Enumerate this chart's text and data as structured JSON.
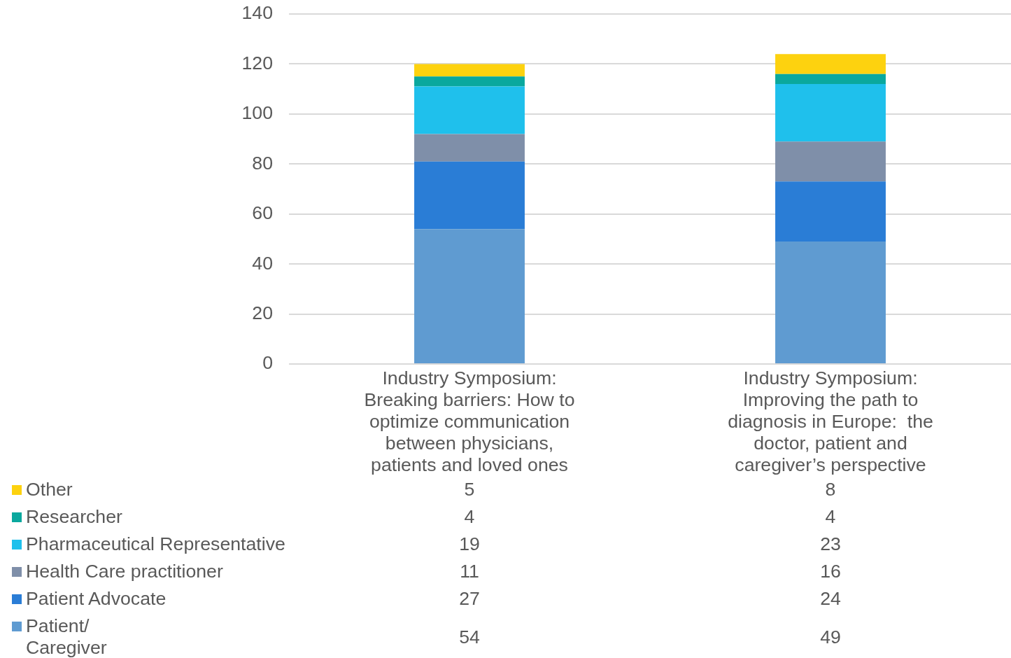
{
  "chart_data": {
    "type": "bar",
    "stacked": true,
    "categories": [
      "Industry Symposium: Breaking barriers: How to optimize communication between physicians, patients and loved ones",
      "Industry Symposium: Improving the path to diagnosis in Europe:  the doctor, patient and caregiver’s perspective"
    ],
    "series": [
      {
        "name": "Patient/\nCaregiver",
        "color": "#5f9bd1",
        "values": [
          54,
          49
        ]
      },
      {
        "name": "Patient Advocate",
        "color": "#2a7dd6",
        "values": [
          27,
          24
        ]
      },
      {
        "name": "Health Care practitioner",
        "color": "#7f8fa9",
        "values": [
          11,
          16
        ]
      },
      {
        "name": "Pharmaceutical Representative",
        "color": "#1fc0ec",
        "values": [
          19,
          23
        ]
      },
      {
        "name": "Researcher",
        "color": "#0aa89e",
        "values": [
          4,
          4
        ]
      },
      {
        "name": "Other",
        "color": "#fdd20f",
        "values": [
          5,
          8
        ]
      }
    ],
    "ylim": [
      0,
      140
    ],
    "yticks": [
      0,
      20,
      40,
      60,
      80,
      100,
      120,
      140
    ],
    "grid": "y",
    "legend": "bottom",
    "data_labels": true
  }
}
